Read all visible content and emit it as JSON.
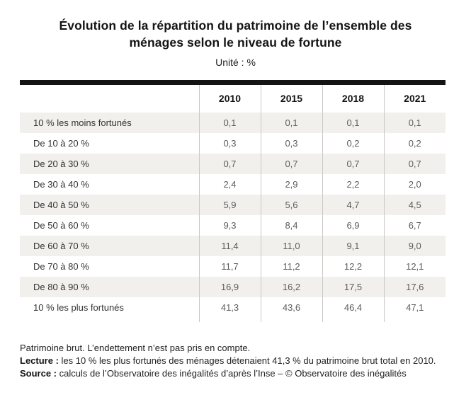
{
  "header": {
    "title": "Évolution de la répartition du patrimoine de l’ensemble des ménages selon le niveau de fortune",
    "subtitle": "Unité : %"
  },
  "table": {
    "columns": [
      "2010",
      "2015",
      "2018",
      "2021"
    ],
    "rows": [
      {
        "label": "10 % les moins fortunés",
        "values": [
          "0,1",
          "0,1",
          "0,1",
          "0,1"
        ]
      },
      {
        "label": "De 10 à 20 %",
        "values": [
          "0,3",
          "0,3",
          "0,2",
          "0,2"
        ]
      },
      {
        "label": "De 20 à 30 %",
        "values": [
          "0,7",
          "0,7",
          "0,7",
          "0,7"
        ]
      },
      {
        "label": "De 30 à 40 %",
        "values": [
          "2,4",
          "2,9",
          "2,2",
          "2,0"
        ]
      },
      {
        "label": "De 40 à 50 %",
        "values": [
          "5,9",
          "5,6",
          "4,7",
          "4,5"
        ]
      },
      {
        "label": "De 50 à 60 %",
        "values": [
          "9,3",
          "8,4",
          "6,9",
          "6,7"
        ]
      },
      {
        "label": "De 60 à 70 %",
        "values": [
          "11,4",
          "11,0",
          "9,1",
          "9,0"
        ]
      },
      {
        "label": "De 70 à 80 %",
        "values": [
          "11,7",
          "11,2",
          "12,2",
          "12,1"
        ]
      },
      {
        "label": "De 80 à 90 %",
        "values": [
          "16,9",
          "16,2",
          "17,5",
          "17,6"
        ]
      },
      {
        "label": "10 % les plus fortunés",
        "values": [
          "41,3",
          "43,6",
          "46,4",
          "47,1"
        ]
      }
    ]
  },
  "notes": {
    "note": "Patrimoine brut. L’endettement n’est pas pris en compte.",
    "lecture_label": "Lecture :",
    "lecture_text": " les 10 % les plus fortunés des ménages détenaient 41,3 % du patrimoine brut total en 2010.",
    "source_label": "Source :",
    "source_text": " calculs de l’Observatoire des inégalités d’après l’Inse – © Observatoire des inégalités"
  },
  "colors": {
    "zebra_row": "#f1f0ec",
    "table_top_bar": "#141414",
    "column_separator": "#c9c8c4",
    "value_text": "#5c5c5c",
    "label_text": "#333333"
  },
  "chart_data": {
    "type": "table",
    "title": "Évolution de la répartition du patrimoine de l’ensemble des ménages selon le niveau de fortune",
    "unit": "%",
    "categories": [
      "10 % les moins fortunés",
      "De 10 à 20 %",
      "De 20 à 30 %",
      "De 30 à 40 %",
      "De 40 à 50 %",
      "De 50 à 60 %",
      "De 60 à 70 %",
      "De 70 à 80 %",
      "De 80 à 90 %",
      "10 % les plus fortunés"
    ],
    "series": [
      {
        "name": "2010",
        "values": [
          0.1,
          0.3,
          0.7,
          2.4,
          5.9,
          9.3,
          11.4,
          11.7,
          16.9,
          41.3
        ]
      },
      {
        "name": "2015",
        "values": [
          0.1,
          0.3,
          0.7,
          2.9,
          5.6,
          8.4,
          11.0,
          11.2,
          16.2,
          43.6
        ]
      },
      {
        "name": "2018",
        "values": [
          0.1,
          0.2,
          0.7,
          2.2,
          4.7,
          6.9,
          9.1,
          12.2,
          17.5,
          46.4
        ]
      },
      {
        "name": "2021",
        "values": [
          0.1,
          0.2,
          0.7,
          2.0,
          4.5,
          6.7,
          9.0,
          12.1,
          17.6,
          47.1
        ]
      }
    ]
  }
}
